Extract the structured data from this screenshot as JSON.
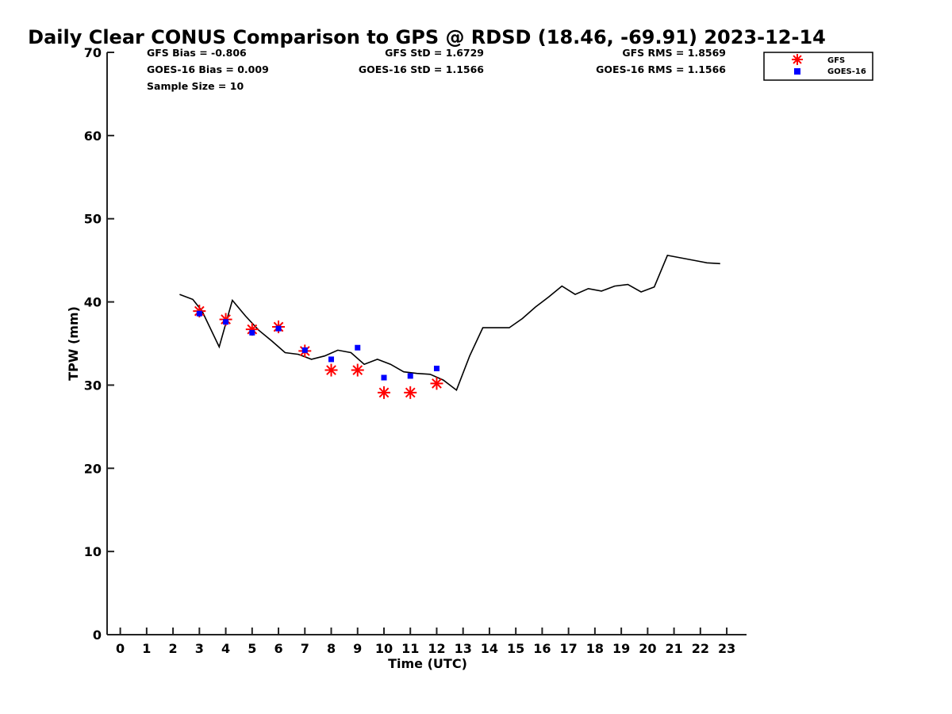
{
  "chart_data": {
    "type": "scatter",
    "title": "Daily Clear CONUS Comparison to GPS @ RDSD (18.46, -69.91) 2023-12-14",
    "xlabel": "Time (UTC)",
    "ylabel": "TPW (mm)",
    "xlim": [
      -0.5,
      23.75
    ],
    "ylim": [
      0,
      70
    ],
    "x_ticks": [
      0,
      1,
      2,
      3,
      4,
      5,
      6,
      7,
      8,
      9,
      10,
      11,
      12,
      13,
      14,
      15,
      16,
      17,
      18,
      19,
      20,
      21,
      22,
      23
    ],
    "x_tick_labels": [
      "0",
      "1",
      "2",
      "3",
      "4",
      "5",
      "6",
      "7",
      "8",
      "9",
      "10",
      "11",
      "12",
      "13",
      "14",
      "15",
      "16",
      "17",
      "18",
      "19",
      "20",
      "21",
      "22",
      "23"
    ],
    "y_ticks": [
      0,
      10,
      20,
      30,
      40,
      50,
      60,
      70
    ],
    "y_tick_labels": [
      "0",
      "10",
      "20",
      "30",
      "40",
      "50",
      "60",
      "70"
    ],
    "grid": false,
    "legend_position": "top-right",
    "stats": {
      "gfs_bias": "GFS Bias = -0.806",
      "goes_bias": "GOES-16 Bias = 0.009",
      "sample_size": "Sample Size = 10",
      "gfs_std": "GFS StD = 1.6729",
      "goes_std": "GOES-16 StD = 1.1566",
      "gfs_rms": "GFS RMS = 1.8569",
      "goes_rms": "GOES-16 RMS = 1.1566"
    },
    "series": [
      {
        "name": "",
        "kind": "line",
        "color": "#000000",
        "x": [
          2.25,
          2.75,
          3.1,
          3.75,
          4.25,
          4.75,
          5.25,
          5.75,
          6.25,
          6.75,
          7.25,
          7.75,
          8.25,
          8.75,
          9.25,
          9.75,
          10.25,
          10.75,
          11.25,
          11.75,
          12.25,
          12.75,
          13.25,
          13.75,
          14.25,
          14.75,
          15.25,
          15.75,
          16.25,
          16.75,
          17.25,
          17.75,
          18.25,
          18.75,
          19.25,
          19.75,
          20.25,
          20.75,
          21.25,
          21.75,
          22.25,
          22.75
        ],
        "y": [
          40.9,
          40.3,
          38.9,
          34.6,
          40.2,
          38.3,
          36.6,
          35.3,
          33.9,
          33.7,
          33.1,
          33.5,
          34.2,
          33.9,
          32.5,
          33.1,
          32.5,
          31.6,
          31.4,
          31.3,
          30.6,
          29.4,
          33.5,
          36.9,
          36.9,
          36.9,
          38.0,
          39.4,
          40.6,
          41.9,
          40.9,
          41.6,
          41.3,
          41.9,
          42.1,
          41.2,
          41.8,
          45.6,
          45.3,
          45.0,
          44.7,
          44.6
        ]
      },
      {
        "name": "GFS",
        "kind": "scatter",
        "marker": "asterisk",
        "color": "#ff0000",
        "x": [
          3,
          4,
          5,
          6,
          7,
          8,
          9,
          10,
          11,
          12
        ],
        "y": [
          38.9,
          37.9,
          36.7,
          37.0,
          34.1,
          31.8,
          31.8,
          29.1,
          29.1,
          30.2
        ]
      },
      {
        "name": "GOES-16",
        "kind": "scatter",
        "marker": "square",
        "color": "#0000ff",
        "x": [
          3,
          4,
          5,
          6,
          7,
          8,
          9,
          10,
          11,
          12
        ],
        "y": [
          38.6,
          37.6,
          36.3,
          36.8,
          34.2,
          33.1,
          34.5,
          30.9,
          31.1,
          32.0
        ]
      }
    ]
  }
}
